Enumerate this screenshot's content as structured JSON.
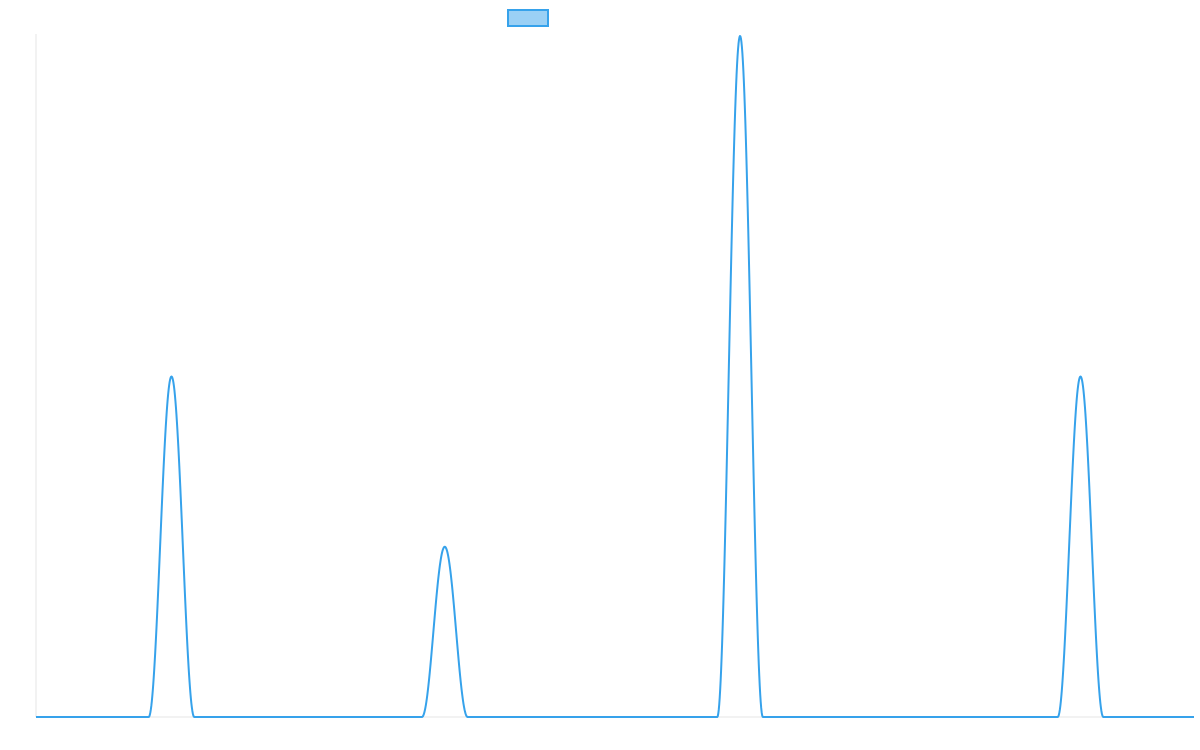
{
  "chart_data": {
    "type": "line",
    "title": "",
    "xlabel": "",
    "ylabel": "",
    "x_range": [
      0,
      1
    ],
    "y_range": [
      0,
      1
    ],
    "grid": false,
    "legend": {
      "placement": "top-center",
      "entries": [
        {
          "name": "",
          "color": "#36a2eb",
          "fill": "#9ad0f5"
        }
      ]
    },
    "series": [
      {
        "color": "#36a2eb",
        "baseline": 0,
        "peaks": [
          {
            "center": 0.117,
            "half_width": 0.0197,
            "height": 0.5
          },
          {
            "center": 0.353,
            "half_width": 0.0197,
            "height": 0.25
          },
          {
            "center": 0.608,
            "half_width": 0.0197,
            "height": 1.0
          },
          {
            "center": 0.902,
            "half_width": 0.0197,
            "height": 0.5
          }
        ]
      }
    ]
  }
}
